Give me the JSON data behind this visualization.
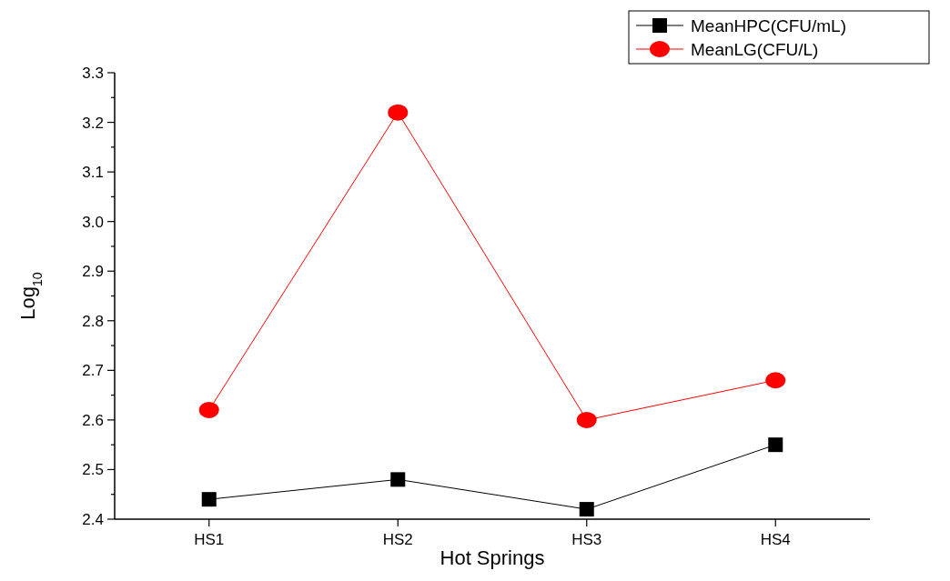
{
  "chart_data": {
    "type": "line",
    "xlabel": "Hot Springs",
    "ylabel": "Log$_{10}$",
    "categories": [
      "HS1",
      "HS2",
      "HS3",
      "HS4"
    ],
    "series": [
      {
        "name": "MeanHPC(CFU/mL)",
        "color": "#000000",
        "marker": "square",
        "values": [
          2.44,
          2.48,
          2.42,
          2.55
        ]
      },
      {
        "name": "MeanLG(CFU/L)",
        "color": "#ff0000",
        "marker": "circle",
        "values": [
          2.62,
          3.22,
          2.6,
          2.68
        ]
      }
    ],
    "ylim": [
      2.4,
      3.3
    ],
    "yticks": [
      2.4,
      {
        "value": 2.45,
        "label": null
      },
      2.5,
      {
        "value": 2.55,
        "label": null
      },
      2.6,
      {
        "value": 2.65,
        "label": null
      },
      2.7,
      {
        "value": 2.75,
        "label": null
      },
      2.8,
      {
        "value": 2.85,
        "label": null
      },
      2.9,
      {
        "value": 2.95,
        "label": null
      },
      {
        "value": 3.0,
        "label": "3.0"
      },
      {
        "value": 3.05,
        "label": null
      },
      3.1,
      {
        "value": 3.15,
        "label": null
      },
      3.2,
      {
        "value": 3.25,
        "label": null
      },
      3.3
    ],
    "grid": false,
    "legend": "top right"
  }
}
